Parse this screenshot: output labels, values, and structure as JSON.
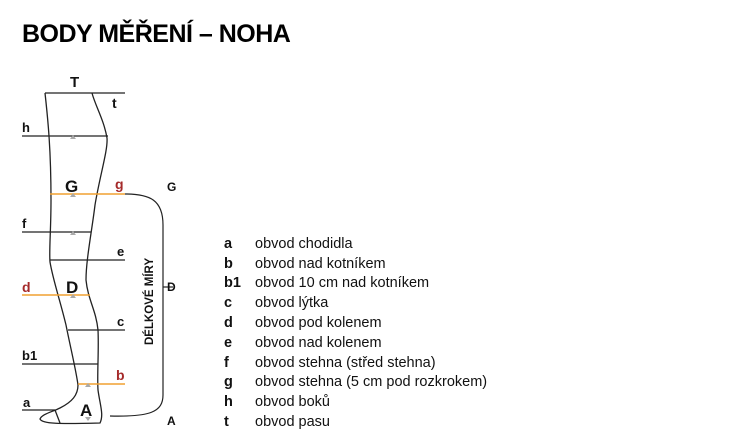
{
  "title": "BODY MĚŘENÍ – NOHA",
  "diagram": {
    "top_label": "T",
    "length_label": "DÉLKOVÉ MÍRY",
    "length_points": [
      "G",
      "D",
      "A"
    ],
    "markers": {
      "G": "G",
      "D": "D",
      "A": "A"
    },
    "lines": {
      "t": "t",
      "h": "h",
      "g": "g",
      "f": "f",
      "e": "e",
      "d": "d",
      "c": "c",
      "b1": "b1",
      "b": "b",
      "a": "a"
    },
    "highlight_color": "#f0a030",
    "highlight_label_color": "#a52a2a"
  },
  "legend": [
    {
      "key": "a",
      "text": "obvod chodidla"
    },
    {
      "key": "b",
      "text": "obvod nad kotníkem"
    },
    {
      "key": "b1",
      "text": "obvod 10 cm nad kotníkem"
    },
    {
      "key": "c",
      "text": "obvod lýtka"
    },
    {
      "key": "d",
      "text": "obvod pod kolenem"
    },
    {
      "key": "e",
      "text": "obvod nad kolenem"
    },
    {
      "key": "f",
      "text": "obvod stehna (střed stehna)"
    },
    {
      "key": "g",
      "text": "obvod stehna (5 cm pod rozkrokem)"
    },
    {
      "key": "h",
      "text": "obvod boků"
    },
    {
      "key": "t",
      "text": "obvod pasu"
    }
  ]
}
